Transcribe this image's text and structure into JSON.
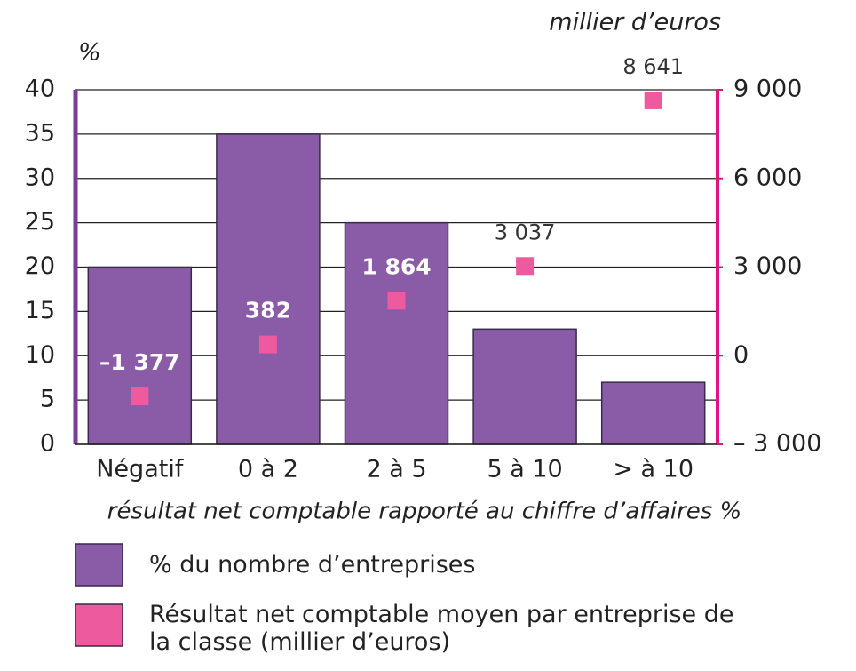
{
  "chart_data": {
    "type": "bar",
    "y_label": "%",
    "y2_label": "millier d’euros",
    "x_label": "résultat net comptable rapporté au chiffre d’affaires %",
    "categories": [
      "Négatif",
      "0 à 2",
      "2 à 5",
      "5 à 10",
      "> à 10"
    ],
    "series": [
      {
        "name": "% du nombre d’entreprises",
        "type": "bar",
        "color": "#8a5ba6",
        "values": [
          20,
          35,
          25,
          13,
          7
        ]
      },
      {
        "name": "Résultat net comptable moyen par entreprise de la classe (millier d’euros)",
        "type": "scatter",
        "axis": "y2",
        "color": "#ee5a9e",
        "values": [
          -1377,
          382,
          1864,
          3037,
          8641
        ],
        "value_labels": [
          "–1 377",
          "382",
          "1 864",
          "3 037",
          "8 641"
        ]
      }
    ],
    "ylim": [
      0,
      40
    ],
    "yticks": [
      0,
      5,
      10,
      15,
      20,
      25,
      30,
      35,
      40
    ],
    "y2lim": [
      -3000,
      9000
    ],
    "y2ticks": [
      {
        "value": -3000,
        "label": "– 3 000"
      },
      {
        "value": 0,
        "label": "0"
      },
      {
        "value": 3000,
        "label": "3 000"
      },
      {
        "value": 6000,
        "label": "6 000"
      },
      {
        "value": 9000,
        "label": "9 000"
      }
    ],
    "y_axis_color": "#7a3c98",
    "y2_axis_color": "#e0147f",
    "grid": true
  }
}
